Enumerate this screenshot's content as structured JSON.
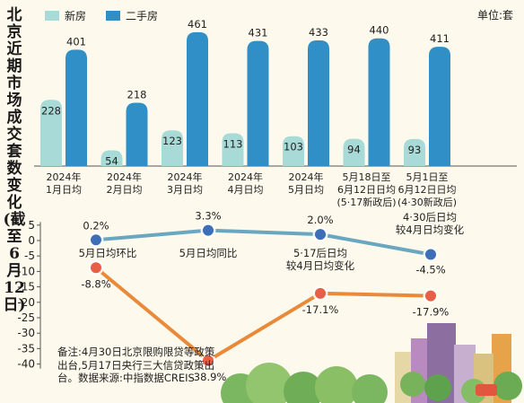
{
  "side_title": "北京近期市场成交套数变化(截至6月12日)",
  "unit": "单位:套",
  "note": "备注:4月30日北京限购限贷等政策出台,5月17日央行三大信贷政策出台。数据来源:中指数据CREIS",
  "colors": {
    "new": "#a8dad7",
    "used": "#2f8fc6",
    "upper_line": "#69a6c0",
    "upper_dot": "#3d6fb8",
    "lower_line": "#e98a3a",
    "lower_dot": "#e65f46"
  },
  "chart_data": [
    {
      "type": "bar",
      "series": [
        {
          "name": "新房",
          "values": [
            228,
            54,
            123,
            113,
            103,
            94,
            93
          ]
        },
        {
          "name": "二手房",
          "values": [
            401,
            218,
            461,
            431,
            433,
            440,
            411
          ]
        }
      ],
      "categories": [
        [
          "2024年",
          "1月日均"
        ],
        [
          "2024年",
          "2月日均"
        ],
        [
          "2024年",
          "3月日均"
        ],
        [
          "2024年",
          "4月日均"
        ],
        [
          "2024年",
          "5月日均"
        ],
        [
          "5月18日至",
          "6月12日日均",
          "(5·17新政后)"
        ],
        [
          "5月1日至",
          "6月12日日均",
          "(4·30新政后)"
        ]
      ],
      "ylim": [
        0,
        470
      ],
      "legend": "top-left"
    },
    {
      "type": "line",
      "y_ticks": [
        5,
        0,
        -5,
        -10,
        -15,
        -20,
        -25,
        -30,
        -35,
        -40
      ],
      "ylim": [
        -42,
        6
      ],
      "series": [
        {
          "values": [
            0.2,
            3.3,
            2.0,
            -4.5
          ],
          "labels": [
            "0.2%",
            "3.3%",
            "2.0%",
            "-4.5%"
          ]
        },
        {
          "values": [
            -8.8,
            -38.9,
            -17.1,
            -17.9
          ],
          "labels": [
            "-8.8%",
            "-38.9%",
            "-17.1%",
            "-17.9%"
          ]
        }
      ],
      "category_labels": [
        [
          "5月日均环比"
        ],
        [
          "5月日均同比"
        ],
        [
          "5·17后日均",
          "较4月日均变化"
        ],
        [
          "4·30后日均",
          "较4月日均变化"
        ]
      ]
    }
  ]
}
